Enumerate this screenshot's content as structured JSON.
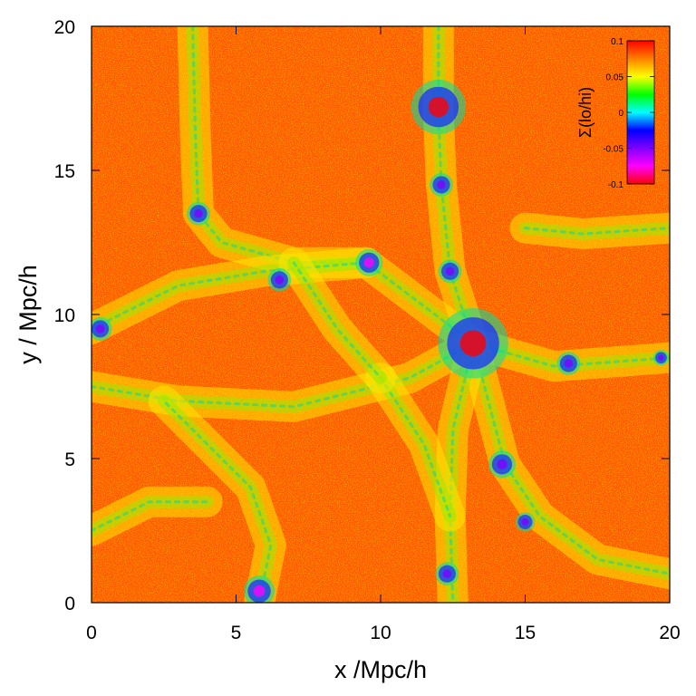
{
  "chart_data": {
    "type": "heatmap",
    "title": "",
    "xlabel": "x /Mpc/h",
    "ylabel": "y / Mpc/h",
    "xlim": [
      0,
      20
    ],
    "ylim": [
      0,
      20
    ],
    "x_ticks": [
      "0",
      "5",
      "10",
      "15",
      "20"
    ],
    "y_ticks": [
      "0",
      "5",
      "10",
      "15",
      "20"
    ],
    "x_tick_values": [
      0,
      5,
      10,
      15,
      20
    ],
    "y_tick_values": [
      0,
      5,
      10,
      15,
      20
    ],
    "colorbar": {
      "label": "Σ(lo/hi)",
      "range": [
        -0.1,
        0.1
      ],
      "ticks": [
        "0.1",
        "0.05",
        "0",
        "-0.05",
        "-0.1"
      ],
      "tick_values": [
        0.1,
        0.05,
        0,
        -0.05,
        -0.1
      ],
      "colormap": [
        "#ff0000",
        "#ff8000",
        "#ffff00",
        "#00ff00",
        "#00ffff",
        "#0000ff",
        "#8000ff",
        "#ff00ff",
        "#ff0000"
      ],
      "placement": "top-right"
    },
    "background_color": "#ff5a00",
    "filaments": [
      [
        [
          3.5,
          20
        ],
        [
          3.6,
          16
        ],
        [
          3.7,
          13.5
        ],
        [
          4.5,
          12.5
        ],
        [
          7,
          11.8
        ],
        [
          9.5,
          11.8
        ]
      ],
      [
        [
          12.0,
          20
        ],
        [
          12.0,
          17
        ],
        [
          12.1,
          14.5
        ],
        [
          12.4,
          11.5
        ],
        [
          13.2,
          9
        ]
      ],
      [
        [
          0,
          9.5
        ],
        [
          3,
          11
        ],
        [
          6,
          11.5
        ],
        [
          9.5,
          11.8
        ],
        [
          13.2,
          9
        ]
      ],
      [
        [
          13.2,
          9
        ],
        [
          16,
          8.2
        ],
        [
          20,
          8.5
        ]
      ],
      [
        [
          13.2,
          9
        ],
        [
          14.3,
          4.8
        ],
        [
          15.5,
          3
        ],
        [
          17.5,
          1.5
        ],
        [
          20,
          1
        ]
      ],
      [
        [
          13.2,
          9
        ],
        [
          12.5,
          6
        ],
        [
          12.4,
          3
        ],
        [
          12.5,
          0
        ]
      ],
      [
        [
          0,
          7.5
        ],
        [
          3,
          7.0
        ],
        [
          7,
          6.8
        ],
        [
          11,
          7.8
        ],
        [
          13.2,
          9
        ]
      ],
      [
        [
          5.8,
          0
        ],
        [
          6.2,
          2
        ],
        [
          5.5,
          4
        ],
        [
          4.0,
          5.5
        ],
        [
          2.5,
          7.0
        ]
      ],
      [
        [
          0,
          2.5
        ],
        [
          2,
          3.5
        ],
        [
          4,
          3.5
        ]
      ],
      [
        [
          15,
          13
        ],
        [
          17,
          12.8
        ],
        [
          20,
          13
        ]
      ],
      [
        [
          10,
          7.8
        ],
        [
          11.5,
          5.5
        ],
        [
          12.4,
          3
        ]
      ],
      [
        [
          7,
          11.8
        ],
        [
          8.5,
          9.5
        ],
        [
          10,
          7.8
        ]
      ]
    ],
    "halos": [
      {
        "x": 13.2,
        "y": 9.0,
        "r": 0.9,
        "value": -0.1
      },
      {
        "x": 12.0,
        "y": 17.2,
        "r": 0.7,
        "value": -0.1
      },
      {
        "x": 9.6,
        "y": 11.8,
        "r": 0.35,
        "value": -0.07
      },
      {
        "x": 5.8,
        "y": 0.4,
        "r": 0.4,
        "value": -0.08
      },
      {
        "x": 12.1,
        "y": 14.5,
        "r": 0.3,
        "value": -0.06
      },
      {
        "x": 12.4,
        "y": 11.5,
        "r": 0.3,
        "value": -0.06
      },
      {
        "x": 14.2,
        "y": 4.8,
        "r": 0.35,
        "value": -0.06
      },
      {
        "x": 12.3,
        "y": 1.0,
        "r": 0.3,
        "value": -0.06
      },
      {
        "x": 3.7,
        "y": 13.5,
        "r": 0.3,
        "value": -0.06
      },
      {
        "x": 6.5,
        "y": 11.2,
        "r": 0.3,
        "value": -0.05
      },
      {
        "x": 16.5,
        "y": 8.3,
        "r": 0.3,
        "value": -0.05
      },
      {
        "x": 0.3,
        "y": 9.5,
        "r": 0.3,
        "value": -0.04
      },
      {
        "x": 15.0,
        "y": 2.8,
        "r": 0.25,
        "value": -0.05
      },
      {
        "x": 19.7,
        "y": 8.5,
        "r": 0.2,
        "value": -0.04
      }
    ]
  }
}
